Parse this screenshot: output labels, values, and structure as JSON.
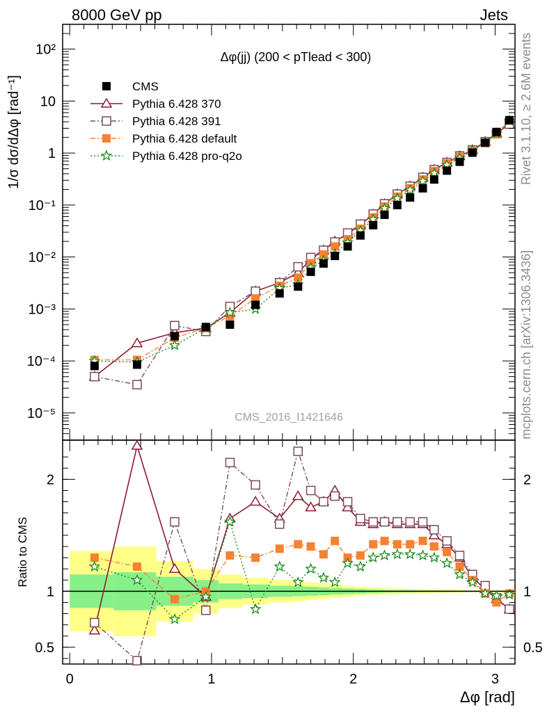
{
  "header": {
    "left": "8000 GeV pp",
    "right": "Jets"
  },
  "side_labels": {
    "rivet": "Rivet 3.1.10, ≥ 2.6M events",
    "mcplots": "mcplots.cern.ch [arXiv:1306.3436]"
  },
  "chart_data": [
    {
      "panel": "main",
      "type": "scatter",
      "title": "Δφ(jj) (200 < pTlead <  300)",
      "ylabel": "1/σ dσ/dΔφ [rad⁻¹]",
      "xlabel": "Δφ [rad]",
      "watermark": "CMS_2016_I1421646",
      "xlim": [
        -0.05,
        3.14
      ],
      "ylim": [
        3e-06,
        300
      ],
      "yscale": "log",
      "legend_position": "top-left",
      "x": [
        0.175,
        0.475,
        0.74,
        0.96,
        1.13,
        1.31,
        1.48,
        1.61,
        1.7,
        1.79,
        1.87,
        1.96,
        2.05,
        2.14,
        2.22,
        2.31,
        2.4,
        2.49,
        2.57,
        2.66,
        2.75,
        2.84,
        2.93,
        3.01,
        3.1
      ],
      "series": [
        {
          "name": "CMS",
          "color": "#000000",
          "marker": "square-filled",
          "values": [
            8e-05,
            8.5e-05,
            0.0003,
            0.00045,
            0.0005,
            0.0012,
            0.002,
            0.0027,
            0.0052,
            0.0075,
            0.0105,
            0.016,
            0.026,
            0.041,
            0.065,
            0.1,
            0.14,
            0.21,
            0.31,
            0.46,
            0.68,
            1.02,
            1.58,
            2.55,
            4.3
          ]
        },
        {
          "name": "Pythia 6.428 370",
          "color": "#8b1a2e",
          "marker": "triangle-open",
          "line": "solid",
          "values": [
            5e-05,
            0.00022,
            0.00035,
            0.00043,
            0.00085,
            0.0022,
            0.0032,
            0.005,
            0.009,
            0.0135,
            0.02,
            0.028,
            0.042,
            0.066,
            0.105,
            0.162,
            0.23,
            0.34,
            0.48,
            0.66,
            0.88,
            1.15,
            1.65,
            2.4,
            3.6
          ]
        },
        {
          "name": "Pythia 6.428 391",
          "color": "#7a4a5a",
          "marker": "square-open",
          "line": "dashdot",
          "values": [
            5e-05,
            3.5e-05,
            0.00048,
            0.00037,
            0.00112,
            0.0022,
            0.0032,
            0.0065,
            0.0098,
            0.0135,
            0.0195,
            0.029,
            0.043,
            0.067,
            0.106,
            0.162,
            0.23,
            0.34,
            0.48,
            0.66,
            0.88,
            1.15,
            1.66,
            2.4,
            3.6
          ]
        },
        {
          "name": "Pythia 6.428 default",
          "color": "#f58231",
          "marker": "square-filled",
          "line": "dashdot",
          "values": [
            0.000105,
            0.000105,
            0.00028,
            0.00043,
            0.00073,
            0.0016,
            0.0028,
            0.004,
            0.0076,
            0.0112,
            0.016,
            0.022,
            0.035,
            0.058,
            0.094,
            0.145,
            0.21,
            0.31,
            0.45,
            0.63,
            0.85,
            1.11,
            1.57,
            2.3,
            4.2
          ]
        },
        {
          "name": "Pythia 6.428 pro-q2o",
          "color": "#1a8a1a",
          "marker": "star",
          "line": "dotted",
          "values": [
            0.0001,
            9.5e-05,
            0.0002,
            0.00043,
            0.00085,
            0.001,
            0.0025,
            0.00295,
            0.0062,
            0.0085,
            0.0115,
            0.019,
            0.032,
            0.053,
            0.086,
            0.134,
            0.195,
            0.29,
            0.41,
            0.59,
            0.8,
            1.12,
            1.59,
            2.4,
            4.2
          ]
        }
      ]
    },
    {
      "panel": "ratio",
      "type": "line",
      "ylabel": "Ratio to CMS",
      "xlabel": "Δφ [rad]",
      "xlim": [
        -0.05,
        3.14
      ],
      "ylim": [
        0.35,
        2.35
      ],
      "x_ticks": [
        "0",
        "1",
        "2",
        "3"
      ],
      "y_ticks": [
        "0.5",
        "1",
        "2"
      ],
      "band_edges": [
        0.0,
        0.31,
        0.61,
        0.87,
        1.05,
        1.22,
        1.4,
        1.57,
        1.66,
        1.75,
        1.83,
        1.92,
        2.01,
        2.09,
        2.18,
        2.27,
        2.36,
        2.44,
        2.53,
        2.62,
        2.71,
        2.79,
        2.88,
        2.97,
        3.06,
        3.14
      ],
      "band_inner": [
        0.15,
        0.17,
        0.13,
        0.1,
        0.07,
        0.06,
        0.05,
        0.045,
        0.04,
        0.035,
        0.03,
        0.025,
        0.02,
        0.015,
        0.012,
        0.01,
        0.01,
        0.008,
        0.008,
        0.007,
        0.006,
        0.006,
        0.005,
        0.005,
        0.005
      ],
      "band_outer": [
        0.36,
        0.4,
        0.27,
        0.2,
        0.15,
        0.12,
        0.1,
        0.09,
        0.08,
        0.07,
        0.06,
        0.05,
        0.04,
        0.035,
        0.03,
        0.025,
        0.02,
        0.018,
        0.015,
        0.013,
        0.012,
        0.01,
        0.01,
        0.01,
        0.01
      ],
      "series": [
        {
          "name": "Pythia 6.428 370",
          "color": "#8b1a2e",
          "values": [
            0.65,
            2.3,
            1.2,
            0.95,
            1.65,
            1.8,
            1.65,
            1.85,
            1.75,
            1.8,
            1.9,
            1.75,
            1.62,
            1.6,
            1.62,
            1.6,
            1.6,
            1.6,
            1.5,
            1.42,
            1.3,
            1.12,
            1.02,
            0.93,
            0.84
          ]
        },
        {
          "name": "Pythia 6.428 391",
          "color": "#7a4a5a",
          "values": [
            0.72,
            0.38,
            1.62,
            0.83,
            2.15,
            1.95,
            1.6,
            2.25,
            1.9,
            1.8,
            1.85,
            1.8,
            1.65,
            1.62,
            1.62,
            1.62,
            1.62,
            1.62,
            1.55,
            1.45,
            1.32,
            1.15,
            1.05,
            0.94,
            0.84
          ]
        },
        {
          "name": "Pythia 6.428 default",
          "color": "#f58231",
          "values": [
            1.3,
            1.22,
            0.93,
            1.0,
            1.32,
            1.3,
            1.38,
            1.42,
            1.4,
            1.33,
            1.45,
            1.3,
            1.32,
            1.42,
            1.45,
            1.42,
            1.42,
            1.45,
            1.4,
            1.35,
            1.22,
            1.1,
            0.98,
            0.9,
            0.98
          ]
        },
        {
          "name": "Pythia 6.428 pro-q2o",
          "color": "#1a8a1a",
          "values": [
            1.22,
            1.1,
            0.75,
            0.95,
            1.62,
            0.84,
            1.22,
            1.08,
            1.2,
            1.12,
            1.08,
            1.25,
            1.22,
            1.3,
            1.32,
            1.33,
            1.33,
            1.32,
            1.3,
            1.25,
            1.15,
            1.08,
            0.98,
            0.96,
            0.97
          ]
        }
      ]
    }
  ]
}
